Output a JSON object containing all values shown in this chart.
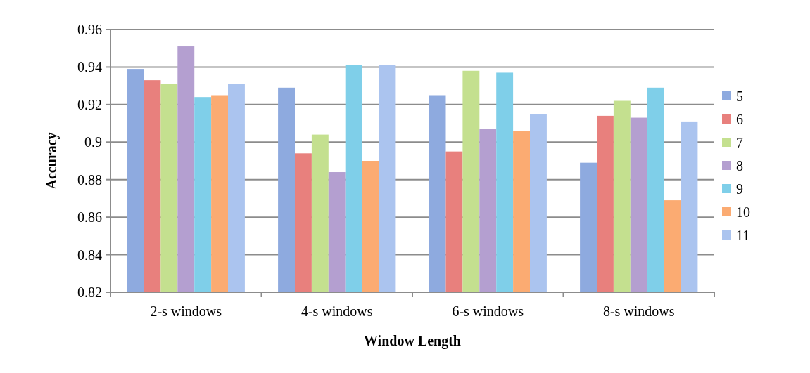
{
  "chart_data": {
    "type": "bar",
    "xlabel": "Window Length",
    "ylabel": "Accuracy",
    "categories": [
      "2-s windows",
      "4-s windows",
      "6-s windows",
      "8-s windows"
    ],
    "series": [
      {
        "name": "5",
        "color": "#8eaadf",
        "values": [
          0.939,
          0.929,
          0.925,
          0.889
        ]
      },
      {
        "name": "6",
        "color": "#e8807d",
        "values": [
          0.933,
          0.894,
          0.895,
          0.914
        ]
      },
      {
        "name": "7",
        "color": "#c4e08f",
        "values": [
          0.931,
          0.904,
          0.938,
          0.922
        ]
      },
      {
        "name": "8",
        "color": "#b49fd0",
        "values": [
          0.951,
          0.884,
          0.907,
          0.913
        ]
      },
      {
        "name": "9",
        "color": "#7fcfe9",
        "values": [
          0.924,
          0.941,
          0.937,
          0.929
        ]
      },
      {
        "name": "10",
        "color": "#fbab72",
        "values": [
          0.925,
          0.89,
          0.906,
          0.869
        ]
      },
      {
        "name": "11",
        "color": "#abc4ef",
        "values": [
          0.931,
          0.941,
          0.915,
          0.911
        ]
      }
    ],
    "ylim": [
      0.82,
      0.96
    ],
    "yticks": [
      0.82,
      0.84,
      0.86,
      0.88,
      0.9,
      0.92,
      0.94,
      0.96
    ],
    "grid": "y",
    "legend": "right"
  }
}
